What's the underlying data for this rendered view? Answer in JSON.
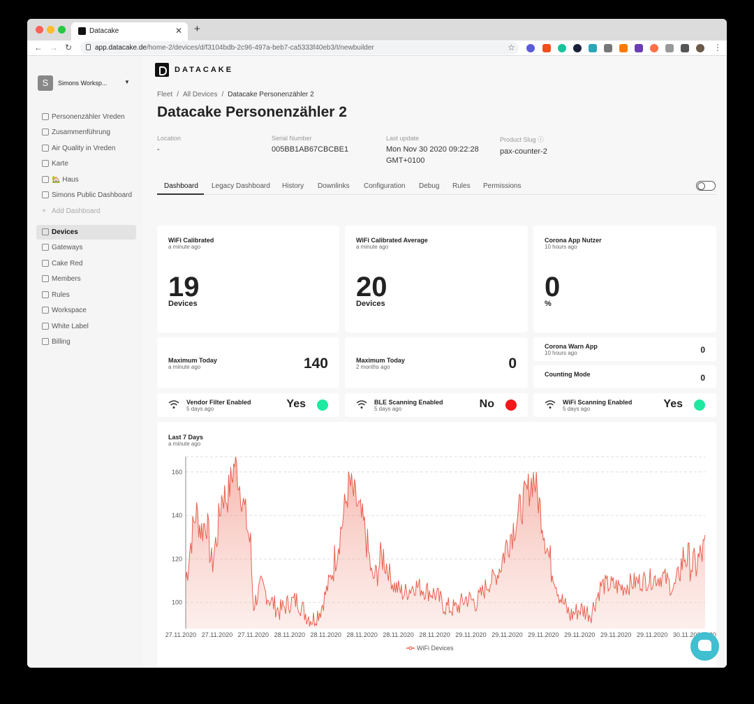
{
  "browser": {
    "tab_title": "Datacake",
    "url_host": "app.datacake.de",
    "url_path": "/home-2/devices/d/f3104bdb-2c96-497a-beb7-ca5333f40eb3/t/newbuilder"
  },
  "sidebar": {
    "workspace_initial": "S",
    "workspace_name": "Simons Worksp...",
    "dashboards": [
      "Personenzähler Vreden",
      "Zusammenführung",
      "Air Quality in Vreden",
      "Karte",
      "🏡 Haus",
      "Simons Public Dashboard"
    ],
    "add_dashboard": "Add Dashboard",
    "menu": [
      "Devices",
      "Gateways",
      "Cake Red",
      "Members",
      "Rules",
      "Workspace",
      "White Label",
      "Billing"
    ]
  },
  "brand": "DATACAKE",
  "breadcrumb": [
    "Fleet",
    "All Devices",
    "Datacake Personenzähler 2"
  ],
  "page_title": "Datacake Personenzähler 2",
  "meta": {
    "location_label": "Location",
    "location_value": "-",
    "serial_label": "Serial Number",
    "serial_value": "005BB1AB67CBCBE1",
    "update_label": "Last update",
    "update_value": "Mon Nov 30 2020 09:22:28",
    "update_value2": "GMT+0100",
    "slug_label": "Product Slug ⓘ",
    "slug_value": "pax-counter-2"
  },
  "tabs": [
    "Dashboard",
    "Legacy Dashboard",
    "History",
    "Downlinks",
    "Configuration",
    "Debug",
    "Rules",
    "Permissions"
  ],
  "widgets": {
    "w1": {
      "title": "WiFi Calibrated",
      "time": "a minute ago",
      "value": "19",
      "unit": "Devices"
    },
    "w2": {
      "title": "WiFi Calibrated Average",
      "time": "a minute ago",
      "value": "20",
      "unit": "Devices"
    },
    "w3": {
      "title": "Corona App Nutzer",
      "time": "10 hours ago",
      "value": "0",
      "unit": "%"
    },
    "w4": {
      "title": "Maximum Today",
      "time": "a minute ago",
      "value": "140"
    },
    "w5": {
      "title": "Maximum Today",
      "time": "2 months ago",
      "value": "0"
    },
    "w6": {
      "title": "Corona Warn App",
      "time": "10 hours ago",
      "value": "0"
    },
    "w7": {
      "title": "Counting Mode",
      "value": "0"
    },
    "s1": {
      "title": "Vendor Filter Enabled",
      "time": "5 days ago",
      "value": "Yes",
      "color": "#1de9a0"
    },
    "s2": {
      "title": "BLE Scanning Enabled",
      "time": "5 days ago",
      "value": "No",
      "color": "#f01818"
    },
    "s3": {
      "title": "WiFi Scanning Enabled",
      "time": "5 days ago",
      "value": "Yes",
      "color": "#1de9a0"
    }
  },
  "chart_card": {
    "title": "Last 7 Days",
    "time": "a minute ago"
  },
  "chart_data": {
    "type": "area",
    "series": [
      {
        "name": "WiFi Devices",
        "color": "#e8614f"
      }
    ],
    "y_ticks": [
      100,
      120,
      140,
      160
    ],
    "ylim": [
      88,
      167
    ],
    "x_tick_labels": [
      "27.11.2020",
      "27.11.2020",
      "27.11.2020",
      "28.11.2020",
      "28.11.2020",
      "28.11.2020",
      "28.11.2020",
      "28.11.2020",
      "29.11.2020",
      "29.11.2020",
      "29.11.2020",
      "29.11.2020",
      "29.11.2020",
      "29.11.2020",
      "30.11.2020",
      "30.11.2020"
    ],
    "profile": [
      [
        0,
        110
      ],
      [
        0.01,
        128
      ],
      [
        0.02,
        142
      ],
      [
        0.03,
        133
      ],
      [
        0.04,
        138
      ],
      [
        0.05,
        117
      ],
      [
        0.06,
        130
      ],
      [
        0.07,
        150
      ],
      [
        0.08,
        148
      ],
      [
        0.095,
        165
      ],
      [
        0.11,
        147
      ],
      [
        0.125,
        126
      ],
      [
        0.13,
        98
      ],
      [
        0.145,
        108
      ],
      [
        0.16,
        102
      ],
      [
        0.18,
        96
      ],
      [
        0.2,
        100
      ],
      [
        0.215,
        101
      ],
      [
        0.23,
        95
      ],
      [
        0.245,
        92
      ],
      [
        0.26,
        97
      ],
      [
        0.28,
        112
      ],
      [
        0.3,
        135
      ],
      [
        0.315,
        155
      ],
      [
        0.33,
        145
      ],
      [
        0.345,
        133
      ],
      [
        0.36,
        110
      ],
      [
        0.38,
        122
      ],
      [
        0.4,
        108
      ],
      [
        0.42,
        104
      ],
      [
        0.44,
        108
      ],
      [
        0.46,
        106
      ],
      [
        0.48,
        104
      ],
      [
        0.5,
        98
      ],
      [
        0.52,
        97
      ],
      [
        0.54,
        102
      ],
      [
        0.56,
        100
      ],
      [
        0.58,
        108
      ],
      [
        0.6,
        113
      ],
      [
        0.62,
        128
      ],
      [
        0.64,
        140
      ],
      [
        0.66,
        152
      ],
      [
        0.67,
        158
      ],
      [
        0.685,
        140
      ],
      [
        0.7,
        120
      ],
      [
        0.72,
        103
      ],
      [
        0.74,
        94
      ],
      [
        0.76,
        97
      ],
      [
        0.78,
        95
      ],
      [
        0.8,
        108
      ],
      [
        0.82,
        108
      ],
      [
        0.84,
        107
      ],
      [
        0.86,
        109
      ],
      [
        0.88,
        110
      ],
      [
        0.9,
        111
      ],
      [
        0.92,
        112
      ],
      [
        0.94,
        106
      ],
      [
        0.96,
        122
      ],
      [
        0.98,
        116
      ],
      [
        1.0,
        125
      ]
    ]
  }
}
